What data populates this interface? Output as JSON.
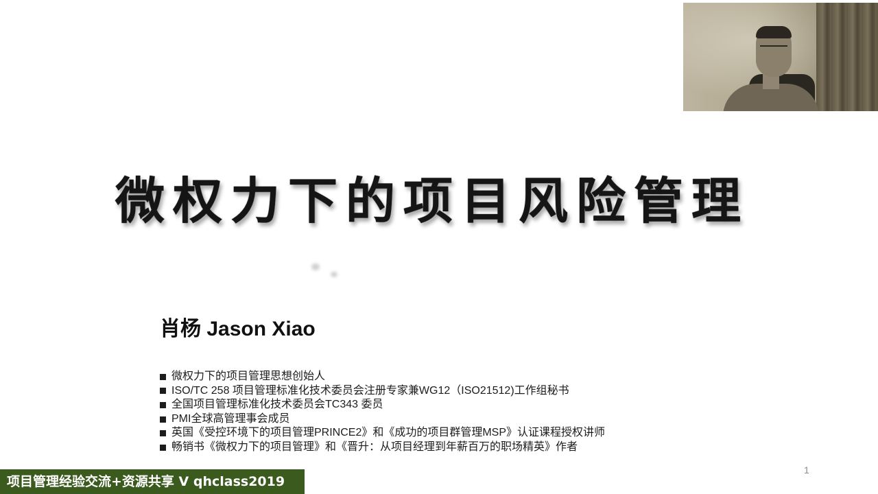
{
  "slide": {
    "title": "微权力下的项目风险管理",
    "presenter_name": "肖杨 Jason Xiao",
    "credentials": [
      "微权力下的项目管理思想创始人",
      "ISO/TC 258 项目管理标准化技术委员会注册专家兼WG12（ISO21512)工作组秘书",
      "全国项目管理标准化技术委员会TC343 委员",
      "PMI全球高管理事会成员",
      "英国《受控环境下的项目管理PRINCE2》和《成功的项目群管理MSP》认证课程授权讲师",
      "畅销书《微权力下的项目管理》和《晋升：从项目经理到年薪百万的职场精英》作者"
    ],
    "page_number": "1"
  },
  "watermark": {
    "text": "项目管理经验交流+资源共享 V qhclass2019"
  },
  "icons": {
    "bullet": "square-bullet-icon"
  },
  "colors": {
    "banner_bg": "#3a5a1e",
    "banner_text": "#ffffff",
    "title_text": "#151515",
    "body_text": "#1c1c1c"
  }
}
